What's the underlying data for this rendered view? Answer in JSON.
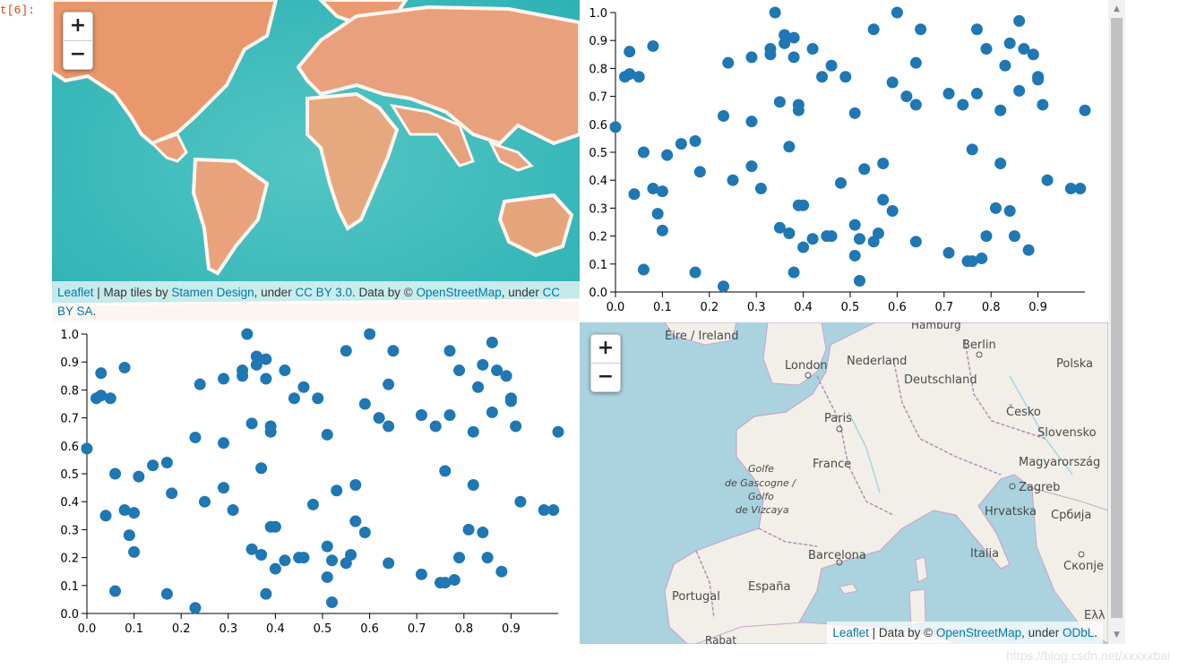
{
  "cell": {
    "prompt": "t[6]:"
  },
  "map1": {
    "zoom_in": "+",
    "zoom_out": "−",
    "attribution": {
      "leaflet": "Leaflet",
      "t1": " | Map tiles by ",
      "stamen": "Stamen Design",
      "t2": ", under ",
      "ccby": "CC BY 3.0",
      "t3": ". Data by © ",
      "osm": "OpenStreetMap",
      "t4": ", under ",
      "ccbysa": "CC BY SA",
      "t5": "."
    }
  },
  "map2": {
    "zoom_in": "+",
    "zoom_out": "−",
    "attribution": {
      "leaflet": "Leaflet",
      "t1": " | Data by © ",
      "osm": "OpenStreetMap",
      "t2": ", under ",
      "odbl": "ODbL",
      "t3": "."
    },
    "labels": {
      "hamburg": "Hamburg",
      "eire": "Éire / Ireland",
      "berlin": "Berlin",
      "london": "London",
      "nederland": "Nederland",
      "polska": "Polska",
      "deutschland": "Deutschland",
      "cesko": "Česko",
      "paris": "Paris",
      "slovensko": "Slovensko",
      "france": "France",
      "magyarorszag": "Magyarország",
      "golfe1": "Golfe",
      "golfe2": "de Gascogne /",
      "golfe3": "Golfo",
      "golfe4": "de Vizcaya",
      "zagreb": "Zagreb",
      "hrvatska": "Hrvatska",
      "srbija": "Србија",
      "barcelona": "Barcelona",
      "italia": "Italia",
      "portugal": "Portugal",
      "espana": "España",
      "skopje": "Скопје",
      "ella": "Ελλ",
      "rabat": "Rabat"
    }
  },
  "watermark": "https://blog.csdn.net/xxxxxbai",
  "colors": {
    "point": "#1f77b4",
    "link": "#0078a8",
    "prompt": "#d84315"
  },
  "chart_data": [
    {
      "type": "scatter",
      "xlim": [
        0,
        1
      ],
      "ylim": [
        0,
        1
      ],
      "xticks": [
        "0.0",
        "0.1",
        "0.2",
        "0.3",
        "0.4",
        "0.5",
        "0.6",
        "0.7",
        "0.8",
        "0.9"
      ],
      "yticks": [
        "0.0",
        "0.1",
        "0.2",
        "0.3",
        "0.4",
        "0.5",
        "0.6",
        "0.7",
        "0.8",
        "0.9",
        "1.0"
      ],
      "points": [
        [
          0.0,
          0.59
        ],
        [
          0.03,
          0.86
        ],
        [
          0.02,
          0.77
        ],
        [
          0.03,
          0.78
        ],
        [
          0.05,
          0.77
        ],
        [
          0.08,
          0.88
        ],
        [
          0.06,
          0.5
        ],
        [
          0.04,
          0.35
        ],
        [
          0.08,
          0.37
        ],
        [
          0.1,
          0.36
        ],
        [
          0.09,
          0.28
        ],
        [
          0.1,
          0.22
        ],
        [
          0.06,
          0.08
        ],
        [
          0.11,
          0.49
        ],
        [
          0.14,
          0.53
        ],
        [
          0.17,
          0.54
        ],
        [
          0.18,
          0.43
        ],
        [
          0.17,
          0.07
        ],
        [
          0.23,
          0.02
        ],
        [
          0.23,
          0.63
        ],
        [
          0.24,
          0.82
        ],
        [
          0.25,
          0.4
        ],
        [
          0.29,
          0.84
        ],
        [
          0.29,
          0.61
        ],
        [
          0.29,
          0.45
        ],
        [
          0.31,
          0.37
        ],
        [
          0.33,
          0.85
        ],
        [
          0.33,
          0.87
        ],
        [
          0.34,
          1.0
        ],
        [
          0.36,
          0.89
        ],
        [
          0.36,
          0.92
        ],
        [
          0.38,
          0.91
        ],
        [
          0.38,
          0.84
        ],
        [
          0.35,
          0.68
        ],
        [
          0.39,
          0.67
        ],
        [
          0.39,
          0.65
        ],
        [
          0.37,
          0.52
        ],
        [
          0.35,
          0.23
        ],
        [
          0.37,
          0.21
        ],
        [
          0.38,
          0.07
        ],
        [
          0.39,
          0.31
        ],
        [
          0.4,
          0.31
        ],
        [
          0.4,
          0.16
        ],
        [
          0.42,
          0.87
        ],
        [
          0.42,
          0.19
        ],
        [
          0.44,
          0.77
        ],
        [
          0.46,
          0.81
        ],
        [
          0.45,
          0.2
        ],
        [
          0.46,
          0.2
        ],
        [
          0.48,
          0.39
        ],
        [
          0.49,
          0.77
        ],
        [
          0.51,
          0.64
        ],
        [
          0.51,
          0.24
        ],
        [
          0.52,
          0.19
        ],
        [
          0.51,
          0.13
        ],
        [
          0.52,
          0.04
        ],
        [
          0.53,
          0.44
        ],
        [
          0.55,
          0.94
        ],
        [
          0.55,
          0.18
        ],
        [
          0.56,
          0.21
        ],
        [
          0.57,
          0.46
        ],
        [
          0.57,
          0.33
        ],
        [
          0.59,
          0.29
        ],
        [
          0.59,
          0.75
        ],
        [
          0.6,
          1.0
        ],
        [
          0.62,
          0.7
        ],
        [
          0.64,
          0.82
        ],
        [
          0.65,
          0.94
        ],
        [
          0.64,
          0.67
        ],
        [
          0.64,
          0.18
        ],
        [
          0.71,
          0.71
        ],
        [
          0.71,
          0.14
        ],
        [
          0.74,
          0.67
        ],
        [
          0.75,
          0.11
        ],
        [
          0.76,
          0.11
        ],
        [
          0.76,
          0.51
        ],
        [
          0.77,
          0.71
        ],
        [
          0.77,
          0.94
        ],
        [
          0.79,
          0.87
        ],
        [
          0.78,
          0.12
        ],
        [
          0.79,
          0.2
        ],
        [
          0.81,
          0.3
        ],
        [
          0.82,
          0.65
        ],
        [
          0.82,
          0.46
        ],
        [
          0.83,
          0.81
        ],
        [
          0.84,
          0.89
        ],
        [
          0.84,
          0.29
        ],
        [
          0.85,
          0.2
        ],
        [
          0.86,
          0.97
        ],
        [
          0.86,
          0.72
        ],
        [
          0.87,
          0.87
        ],
        [
          0.88,
          0.15
        ],
        [
          0.89,
          0.85
        ],
        [
          0.9,
          0.77
        ],
        [
          0.9,
          0.76
        ],
        [
          0.91,
          0.67
        ],
        [
          0.92,
          0.4
        ],
        [
          0.97,
          0.37
        ],
        [
          0.99,
          0.37
        ],
        [
          1.0,
          0.65
        ]
      ]
    },
    {
      "type": "scatter",
      "xlim": [
        0,
        1
      ],
      "ylim": [
        0,
        1
      ],
      "xticks": [
        "0.0",
        "0.1",
        "0.2",
        "0.3",
        "0.4",
        "0.5",
        "0.6",
        "0.7",
        "0.8",
        "0.9"
      ],
      "yticks": [
        "0.0",
        "0.1",
        "0.2",
        "0.3",
        "0.4",
        "0.5",
        "0.6",
        "0.7",
        "0.8",
        "0.9",
        "1.0"
      ],
      "points": [
        [
          0.0,
          0.59
        ],
        [
          0.03,
          0.86
        ],
        [
          0.02,
          0.77
        ],
        [
          0.03,
          0.78
        ],
        [
          0.05,
          0.77
        ],
        [
          0.08,
          0.88
        ],
        [
          0.06,
          0.5
        ],
        [
          0.04,
          0.35
        ],
        [
          0.08,
          0.37
        ],
        [
          0.1,
          0.36
        ],
        [
          0.09,
          0.28
        ],
        [
          0.1,
          0.22
        ],
        [
          0.06,
          0.08
        ],
        [
          0.11,
          0.49
        ],
        [
          0.14,
          0.53
        ],
        [
          0.17,
          0.54
        ],
        [
          0.18,
          0.43
        ],
        [
          0.17,
          0.07
        ],
        [
          0.23,
          0.02
        ],
        [
          0.23,
          0.63
        ],
        [
          0.24,
          0.82
        ],
        [
          0.25,
          0.4
        ],
        [
          0.29,
          0.84
        ],
        [
          0.29,
          0.61
        ],
        [
          0.29,
          0.45
        ],
        [
          0.31,
          0.37
        ],
        [
          0.33,
          0.85
        ],
        [
          0.33,
          0.87
        ],
        [
          0.34,
          1.0
        ],
        [
          0.36,
          0.89
        ],
        [
          0.36,
          0.92
        ],
        [
          0.38,
          0.91
        ],
        [
          0.38,
          0.84
        ],
        [
          0.35,
          0.68
        ],
        [
          0.39,
          0.67
        ],
        [
          0.39,
          0.65
        ],
        [
          0.37,
          0.52
        ],
        [
          0.35,
          0.23
        ],
        [
          0.37,
          0.21
        ],
        [
          0.38,
          0.07
        ],
        [
          0.39,
          0.31
        ],
        [
          0.4,
          0.31
        ],
        [
          0.4,
          0.16
        ],
        [
          0.42,
          0.87
        ],
        [
          0.42,
          0.19
        ],
        [
          0.44,
          0.77
        ],
        [
          0.46,
          0.81
        ],
        [
          0.45,
          0.2
        ],
        [
          0.46,
          0.2
        ],
        [
          0.48,
          0.39
        ],
        [
          0.49,
          0.77
        ],
        [
          0.51,
          0.64
        ],
        [
          0.51,
          0.24
        ],
        [
          0.52,
          0.19
        ],
        [
          0.51,
          0.13
        ],
        [
          0.52,
          0.04
        ],
        [
          0.53,
          0.44
        ],
        [
          0.55,
          0.94
        ],
        [
          0.55,
          0.18
        ],
        [
          0.56,
          0.21
        ],
        [
          0.57,
          0.46
        ],
        [
          0.57,
          0.33
        ],
        [
          0.59,
          0.29
        ],
        [
          0.59,
          0.75
        ],
        [
          0.6,
          1.0
        ],
        [
          0.62,
          0.7
        ],
        [
          0.64,
          0.82
        ],
        [
          0.65,
          0.94
        ],
        [
          0.64,
          0.67
        ],
        [
          0.64,
          0.18
        ],
        [
          0.71,
          0.71
        ],
        [
          0.71,
          0.14
        ],
        [
          0.74,
          0.67
        ],
        [
          0.75,
          0.11
        ],
        [
          0.76,
          0.11
        ],
        [
          0.76,
          0.51
        ],
        [
          0.77,
          0.71
        ],
        [
          0.77,
          0.94
        ],
        [
          0.79,
          0.87
        ],
        [
          0.78,
          0.12
        ],
        [
          0.79,
          0.2
        ],
        [
          0.81,
          0.3
        ],
        [
          0.82,
          0.65
        ],
        [
          0.82,
          0.46
        ],
        [
          0.83,
          0.81
        ],
        [
          0.84,
          0.89
        ],
        [
          0.84,
          0.29
        ],
        [
          0.85,
          0.2
        ],
        [
          0.86,
          0.97
        ],
        [
          0.86,
          0.72
        ],
        [
          0.87,
          0.87
        ],
        [
          0.88,
          0.15
        ],
        [
          0.89,
          0.85
        ],
        [
          0.9,
          0.77
        ],
        [
          0.9,
          0.76
        ],
        [
          0.91,
          0.67
        ],
        [
          0.92,
          0.4
        ],
        [
          0.97,
          0.37
        ],
        [
          0.99,
          0.37
        ],
        [
          1.0,
          0.65
        ]
      ]
    }
  ]
}
